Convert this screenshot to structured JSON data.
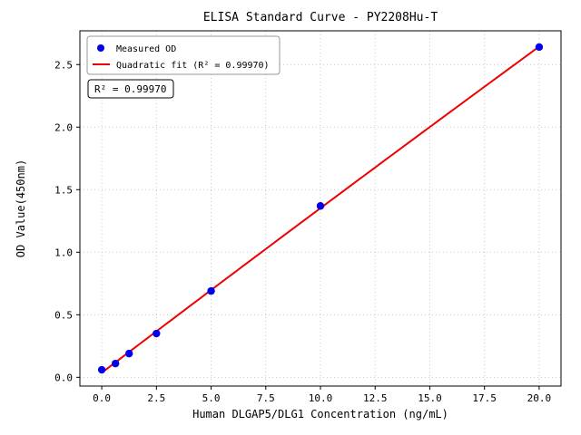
{
  "chart_data": {
    "type": "scatter",
    "title": "ELISA Standard Curve - PY2208Hu-T",
    "xlabel": "Human DLGAP5/DLG1 Concentration (ng/mL)",
    "ylabel": "OD Value(450nm)",
    "xlim": [
      -1.0,
      21.0
    ],
    "ylim": [
      -0.07,
      2.77
    ],
    "grid": true,
    "legend_position": "upper left",
    "xticks": [
      0.0,
      2.5,
      5.0,
      7.5,
      10.0,
      12.5,
      15.0,
      17.5,
      20.0
    ],
    "xtick_labels": [
      "0.0",
      "2.5",
      "5.0",
      "7.5",
      "10.0",
      "12.5",
      "15.0",
      "17.5",
      "20.0"
    ],
    "yticks": [
      0.0,
      0.5,
      1.0,
      1.5,
      2.0,
      2.5
    ],
    "ytick_labels": [
      "0.0",
      "0.5",
      "1.0",
      "1.5",
      "2.0",
      "2.5"
    ],
    "series": [
      {
        "name": "Measured OD",
        "type": "scatter",
        "color": "#0000ee",
        "x": [
          0,
          0.625,
          1.25,
          2.5,
          5,
          10,
          20
        ],
        "y": [
          0.06,
          0.11,
          0.19,
          0.35,
          0.69,
          1.37,
          2.64
        ]
      },
      {
        "name": "Quadratic fit (R² = 0.99970)",
        "type": "line",
        "color": "#ee0000",
        "fit": {
          "a": -0.000123,
          "b": 0.13281,
          "c": 0.0366,
          "x_min": 0,
          "x_max": 20
        }
      }
    ],
    "annotation": "R² = 0.99970",
    "colors": {
      "grid": "#c8c8c8",
      "axis": "#000000",
      "legend_border": "#999999"
    }
  }
}
